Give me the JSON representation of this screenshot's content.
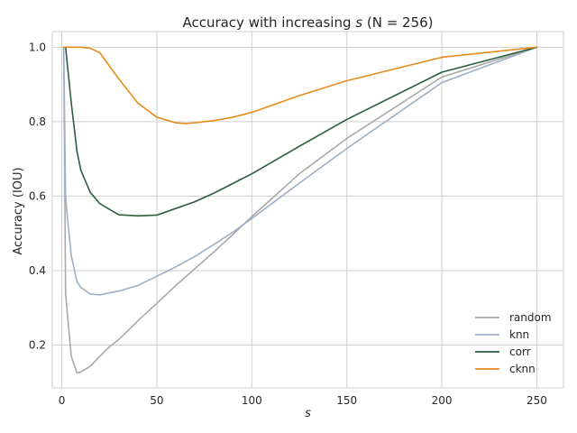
{
  "chart_data": {
    "type": "line",
    "title_prefix": "Accuracy with increasing ",
    "title_var": "s",
    "title_suffix": " (N = 256)",
    "xlabel": "s",
    "ylabel": "Accuracy (IOU)",
    "xlim": [
      -5,
      264
    ],
    "ylim": [
      0.085,
      1.042
    ],
    "xticks": [
      0,
      50,
      100,
      150,
      200,
      250
    ],
    "yticks": [
      0.2,
      0.4,
      0.6,
      0.8,
      1.0
    ],
    "yticklabels": [
      "0.2",
      "0.4",
      "0.6",
      "0.8",
      "1.0"
    ],
    "grid": true,
    "legend_position": "lower right",
    "series": [
      {
        "name": "random",
        "color": "#a9a9a9",
        "x": [
          1,
          2,
          3,
          5,
          8,
          10,
          15,
          20,
          25,
          30,
          35,
          40,
          50,
          60,
          70,
          80,
          90,
          100,
          125,
          150,
          200,
          250
        ],
        "y": [
          1.0,
          0.34,
          0.28,
          0.17,
          0.125,
          0.128,
          0.143,
          0.17,
          0.195,
          0.215,
          0.24,
          0.265,
          0.312,
          0.36,
          0.405,
          0.45,
          0.497,
          0.545,
          0.66,
          0.755,
          0.92,
          1.0
        ]
      },
      {
        "name": "knn",
        "color": "#9fb0c4",
        "x": [
          1,
          2,
          3,
          5,
          8,
          10,
          15,
          20,
          25,
          30,
          40,
          50,
          60,
          70,
          80,
          90,
          100,
          125,
          150,
          200,
          250
        ],
        "y": [
          1.0,
          0.6,
          0.54,
          0.44,
          0.37,
          0.355,
          0.337,
          0.335,
          0.34,
          0.345,
          0.36,
          0.385,
          0.41,
          0.438,
          0.47,
          0.503,
          0.54,
          0.635,
          0.728,
          0.905,
          1.0
        ]
      },
      {
        "name": "corr",
        "color": "#2a5e3e",
        "x": [
          1,
          2,
          3,
          5,
          8,
          10,
          15,
          20,
          25,
          30,
          40,
          50,
          60,
          70,
          80,
          90,
          100,
          125,
          150,
          200,
          250
        ],
        "y": [
          1.0,
          1.0,
          0.95,
          0.85,
          0.72,
          0.67,
          0.61,
          0.58,
          0.565,
          0.55,
          0.547,
          0.549,
          0.567,
          0.585,
          0.608,
          0.634,
          0.66,
          0.734,
          0.806,
          0.933,
          1.0
        ]
      },
      {
        "name": "cknn",
        "color": "#e88a1a",
        "x": [
          1,
          5,
          10,
          15,
          20,
          25,
          30,
          40,
          50,
          60,
          65,
          70,
          80,
          90,
          100,
          125,
          150,
          200,
          250
        ],
        "y": [
          1.0,
          1.0,
          1.0,
          0.997,
          0.985,
          0.95,
          0.915,
          0.85,
          0.812,
          0.797,
          0.795,
          0.797,
          0.803,
          0.812,
          0.825,
          0.87,
          0.91,
          0.973,
          1.0
        ]
      }
    ]
  }
}
